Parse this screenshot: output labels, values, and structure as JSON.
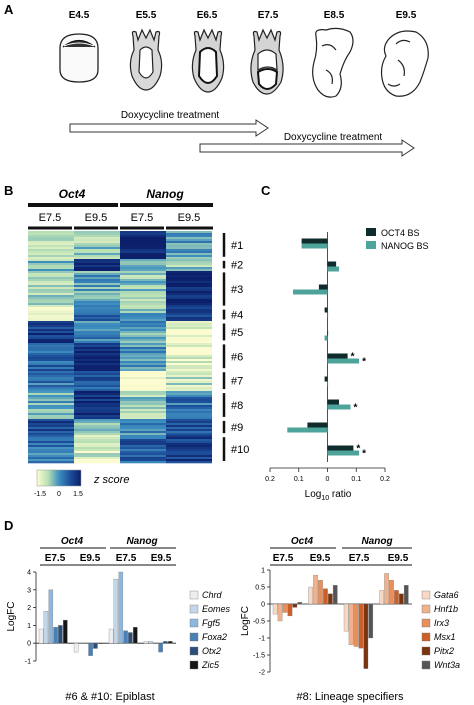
{
  "panels": {
    "A": "A",
    "B": "B",
    "C": "C",
    "D": "D"
  },
  "panel_a": {
    "stages": [
      "E4.5",
      "E5.5",
      "E6.5",
      "E7.5",
      "E8.5",
      "E9.5"
    ],
    "treatment_1": "Doxycycline treatment",
    "treatment_2": "Doxycycline treatment"
  },
  "panel_b": {
    "groups": [
      "Oct4",
      "Nanog"
    ],
    "subcolumns": [
      "E7.5",
      "E9.5",
      "E7.5",
      "E9.5"
    ],
    "clusters": [
      "#1",
      "#2",
      "#3",
      "#4",
      "#5",
      "#6",
      "#7",
      "#8",
      "#9",
      "#10"
    ],
    "colorbar_ticks": [
      "-1.5",
      "0",
      "1.5"
    ],
    "colorbar_label": "z score",
    "colors": {
      "low": "#fdfcd0",
      "mid": "#3e8fc0",
      "high": "#0c1f6b"
    }
  },
  "chart_data": [
    {
      "type": "bar",
      "orientation": "horizontal",
      "categories": [
        "#1",
        "#2",
        "#3",
        "#4",
        "#5",
        "#6",
        "#7",
        "#8",
        "#9",
        "#10"
      ],
      "series": [
        {
          "name": "OCT4 BS",
          "color": "#0f2b2b",
          "values": [
            -0.09,
            0.03,
            -0.03,
            -0.01,
            0.0,
            0.07,
            -0.01,
            0.04,
            -0.07,
            0.09
          ]
        },
        {
          "name": "NANOG BS",
          "color": "#4ea49a",
          "values": [
            -0.09,
            0.04,
            -0.12,
            0.0,
            -0.01,
            0.11,
            0.0,
            0.08,
            -0.14,
            0.11
          ]
        }
      ],
      "significant": {
        "OCT4 BS": [
          false,
          false,
          false,
          false,
          false,
          true,
          false,
          false,
          false,
          true
        ],
        "NANOG BS": [
          false,
          false,
          false,
          false,
          false,
          true,
          false,
          true,
          false,
          true
        ]
      },
      "star": "*",
      "xlim": [
        -0.2,
        0.2
      ],
      "xticks": [
        "0.2",
        "0.1",
        "0",
        "0.1",
        "0.2"
      ],
      "xlabel_base": "Log",
      "xlabel_sub": "10",
      "xlabel_rest": " ratio"
    },
    {
      "type": "bar",
      "title": "#6 & #10: Epiblast",
      "ylabel": "LogFC",
      "groups": [
        "Oct4",
        "Nanog"
      ],
      "subgroups": [
        "E7.5",
        "E9.5",
        "E7.5",
        "E9.5"
      ],
      "ylim": [
        -1,
        4
      ],
      "yticks": [
        "-1",
        "0",
        "1",
        "2",
        "3",
        "4"
      ],
      "series": [
        {
          "name": "Chrd",
          "color": "#eeeeee",
          "values": [
            0.8,
            -0.5,
            0.8,
            0.1
          ]
        },
        {
          "name": "Eomes",
          "color": "#c3d7ea",
          "values": [
            1.8,
            0.0,
            3.6,
            0.1
          ]
        },
        {
          "name": "Fgf5",
          "color": "#8fb6dd",
          "values": [
            3.0,
            0.0,
            4.0,
            0.0
          ]
        },
        {
          "name": "Foxa2",
          "color": "#4b80b6",
          "values": [
            0.9,
            -0.7,
            0.7,
            -0.5
          ]
        },
        {
          "name": "Otx2",
          "color": "#2b4f7a",
          "values": [
            1.0,
            -0.3,
            0.6,
            0.1
          ]
        },
        {
          "name": "Zic5",
          "color": "#161616",
          "values": [
            1.3,
            0.0,
            0.9,
            0.1
          ]
        }
      ]
    },
    {
      "type": "bar",
      "title": "#8: Lineage specifiers",
      "ylabel": "LogFC",
      "groups": [
        "Oct4",
        "Nanog"
      ],
      "subgroups": [
        "E7.5",
        "E9.5",
        "E7.5",
        "E9.5"
      ],
      "ylim": [
        -2,
        1
      ],
      "yticks": [
        "-2",
        "-1.5",
        "-1",
        "-0.5",
        "0",
        "0.5",
        "1"
      ],
      "series": [
        {
          "name": "Gata6",
          "color": "#f7d8c4",
          "values": [
            -0.3,
            0.5,
            -0.8,
            0.4
          ]
        },
        {
          "name": "Hnf1b",
          "color": "#f0b28d",
          "values": [
            -0.5,
            0.85,
            -1.2,
            0.9
          ]
        },
        {
          "name": "Irx3",
          "color": "#e88f5c",
          "values": [
            -0.25,
            0.7,
            -1.25,
            0.7
          ]
        },
        {
          "name": "Msx1",
          "color": "#cc5e28",
          "values": [
            -0.35,
            0.45,
            -1.3,
            0.4
          ]
        },
        {
          "name": "Pitx2",
          "color": "#7a3410",
          "values": [
            -0.1,
            0.3,
            -1.9,
            0.3
          ]
        },
        {
          "name": "Wnt3a",
          "color": "#555555",
          "values": [
            0.05,
            0.55,
            -1.0,
            0.55
          ]
        }
      ]
    }
  ]
}
